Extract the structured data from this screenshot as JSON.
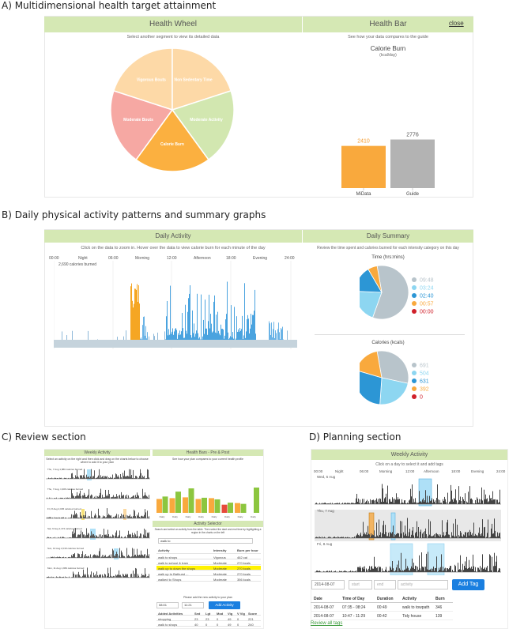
{
  "sections": {
    "a": "A) Multidimensional health target attainment",
    "b": "B) Daily physical activity patterns and summary graphs",
    "c": "C) Review section",
    "d": "D) Planning section"
  },
  "wheel": {
    "title": "Health Wheel",
    "subtitle": "Select another segment to view its detailed data",
    "segments": [
      {
        "label": "Vigorous Bouts",
        "value": 20,
        "color": "#fdd9a7"
      },
      {
        "label": "Non Sedentary Time",
        "value": 20,
        "color": "#fdd9a7"
      },
      {
        "label": "Moderate Activity",
        "value": 20,
        "color": "#d2e7b0"
      },
      {
        "label": "Calorie Burn",
        "value": 20,
        "color": "#fbb040"
      },
      {
        "label": "Moderate Bouts",
        "value": 20,
        "color": "#f6a8a3"
      }
    ]
  },
  "healthbar": {
    "title": "Health Bar",
    "close": "close",
    "subtitle": "See how your data compares to the guide",
    "metric": "Calorie Burn",
    "unit": "(kcal/day)",
    "chart_data": {
      "type": "bar",
      "categories": [
        "MiData",
        "Guide"
      ],
      "values": [
        2410,
        2776
      ],
      "colors": [
        "#f9a93d",
        "#b3b3b3"
      ],
      "labels": [
        "2410",
        "2776"
      ],
      "label_colors": [
        "#f49a2c",
        "#555"
      ],
      "ylim": [
        0,
        2800
      ]
    }
  },
  "daily": {
    "title": "Daily Activity",
    "subtitle": "Click on the data to zoom in. Hover over the data to view calorie burn for each minute of the day",
    "times": [
      "00:00",
      "06:00",
      "12:00",
      "18:00",
      "24:00"
    ],
    "periods": [
      "Night",
      "Morning",
      "Afternoon",
      "Evening"
    ],
    "calories": "2,690 calories burned"
  },
  "summary": {
    "title": "Daily Summary",
    "subtitle": "Review the time spent and calories burned for each intensity category on this day",
    "time": {
      "title": "Time  (hrs:mins)",
      "slices": [
        {
          "label": "09:48",
          "value": 588,
          "color": "#b8c4cb"
        },
        {
          "label": "03:24",
          "value": 204,
          "color": "#8dd6f1"
        },
        {
          "label": "02:40",
          "value": 160,
          "color": "#2c96d5"
        },
        {
          "label": "00:57",
          "value": 57,
          "color": "#f9a93d"
        },
        {
          "label": "00:00",
          "value": 0,
          "color": "#d0202a"
        }
      ]
    },
    "calories": {
      "title": "Calories  (kcals)",
      "slices": [
        {
          "label": "691",
          "value": 691,
          "color": "#b8c4cb"
        },
        {
          "label": "504",
          "value": 504,
          "color": "#8dd6f1"
        },
        {
          "label": "631",
          "value": 631,
          "color": "#2c96d5"
        },
        {
          "label": "392",
          "value": 392,
          "color": "#f9a93d"
        },
        {
          "label": "0",
          "value": 0,
          "color": "#d0202a"
        }
      ]
    }
  },
  "review": {
    "weekly": "Weekly Activity",
    "weekly_sub": "Select an activity on the right and then click and drag on the charts below to choose where to add it to your plan",
    "days": [
      "Thu, 7 Aug 1,880 calories burned",
      "Thu, 7 Aug, 1,906 calories burned",
      "Fri, 8 Aug 2,045 calories burned",
      "Sat, 9 Aug 2,474 calories burned",
      "Sun, 10 Aug 2,019 calories burned",
      "Mon, 11 Aug 1,969 calories burned"
    ],
    "hb_title": "Health Bars - Pre & Post",
    "hb_sub": "See how your plan compares to your current health profile",
    "bars": [
      {
        "label": "Daily",
        "values": [
          34,
          40
        ]
      },
      {
        "label": "Daily",
        "values": [
          36,
          52
        ]
      },
      {
        "label": "Daily",
        "values": [
          38,
          60
        ]
      },
      {
        "label": "Daily",
        "values": [
          34,
          37
        ]
      },
      {
        "label": "Daily",
        "values": [
          36,
          33
        ]
      },
      {
        "label": "Daily",
        "values": [
          20,
          25
        ]
      },
      {
        "label": "Daily",
        "values": [
          24,
          22
        ]
      },
      {
        "label": "Daily",
        "values": [
          0,
          62
        ]
      }
    ],
    "selector": "Activity Selector",
    "selector_sub": "Search and select an activity from the table. Then select the start and end time by highlighting a region in the charts on the left",
    "search": "walk to",
    "cols": [
      "Activity",
      "Intensity",
      "Burn per hour"
    ],
    "rows": [
      [
        "walk to shops",
        "Vigorous",
        "462 cal"
      ],
      [
        "walk to school & tram",
        "Moderate",
        "270 kcals"
      ],
      [
        "walk up to down the shops",
        "Moderate",
        "270 kcals"
      ],
      [
        "walk up to Bathurst ... ",
        "Moderate",
        "270 kcals"
      ],
      [
        "walked to Shops",
        "Moderate",
        "356 kcals"
      ]
    ],
    "add_label": "Please add the new activity to your plan",
    "add_button": "Add Activity",
    "time_a": "08:01",
    "time_b": "11:21",
    "plan_cols": [
      "Added Activities",
      "Sed",
      "Lgt",
      "Mod",
      "Vig",
      "V Vig",
      "Score"
    ],
    "plan_rows": [
      [
        "shopping",
        "23",
        "23",
        "0",
        "49",
        "0",
        "221"
      ],
      [
        "walk to shops",
        "40",
        "0",
        "0",
        "49",
        "0",
        "240"
      ]
    ]
  },
  "planning": {
    "title": "Weekly Activity",
    "sub": "Click on a day to select it and add tags",
    "times": [
      "00:00",
      "06:00",
      "12:00",
      "18:00",
      "24:00"
    ],
    "periods": [
      "Night",
      "Morning",
      "Afternoon",
      "Evening"
    ],
    "days": [
      "Wed, 6 Aug",
      "Thu, 7 Aug",
      "Fri, 8 Aug"
    ],
    "inputs": {
      "date": "2014-08-07",
      "start": "start",
      "end": "end",
      "activity": "activity"
    },
    "add_tag": "Add Tag",
    "cols": [
      "Date",
      "Time of Day",
      "Duration",
      "Activity",
      "Burn"
    ],
    "rows": [
      [
        "2014-08-07",
        "07:35  -  08:24",
        "00:49",
        "walk to towpath",
        "346"
      ],
      [
        "2014-08-07",
        "10:47  -  11:29",
        "00:42",
        "Tidy house",
        "139"
      ]
    ],
    "review_link": "Review all tags"
  }
}
